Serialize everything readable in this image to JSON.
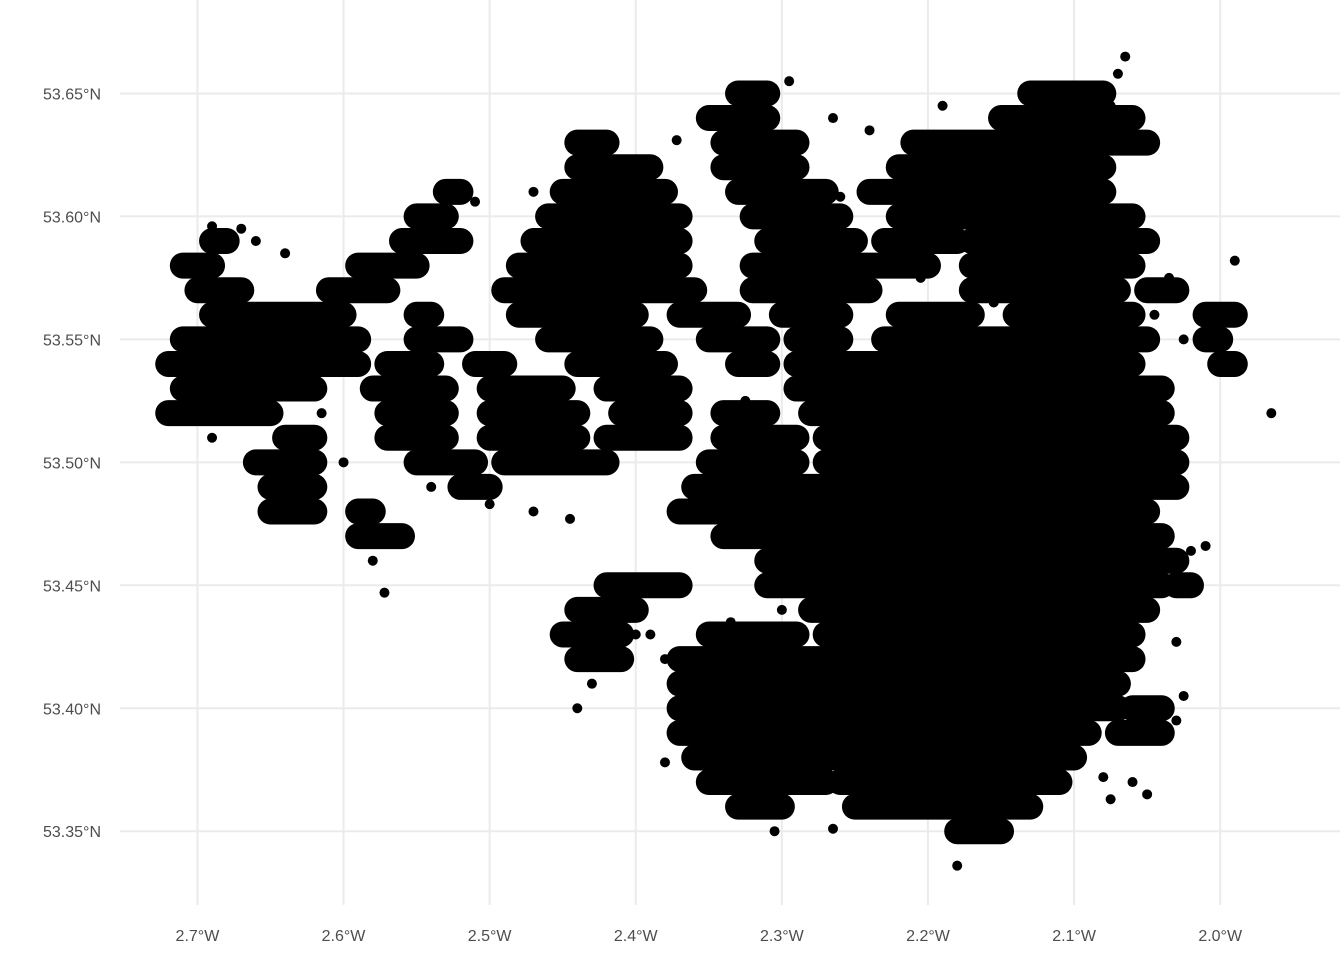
{
  "chart_data": {
    "type": "scatter",
    "title": "",
    "xlabel": "",
    "ylabel": "",
    "xlim": [
      -2.753,
      -1.918
    ],
    "ylim": [
      53.32,
      53.688
    ],
    "grid": true,
    "legend": "none",
    "point_color": "#000000",
    "grid_color": "#ebebeb",
    "x_ticks": [
      {
        "value": -2.7,
        "label": "2.7°W"
      },
      {
        "value": -2.6,
        "label": "2.6°W"
      },
      {
        "value": -2.5,
        "label": "2.5°W"
      },
      {
        "value": -2.4,
        "label": "2.4°W"
      },
      {
        "value": -2.3,
        "label": "2.3°W"
      },
      {
        "value": -2.2,
        "label": "2.2°W"
      },
      {
        "value": -2.1,
        "label": "2.1°W"
      },
      {
        "value": -2.0,
        "label": "2.0°W"
      }
    ],
    "y_ticks": [
      {
        "value": 53.65,
        "label": "53.65°N"
      },
      {
        "value": 53.6,
        "label": "53.60°N"
      },
      {
        "value": 53.55,
        "label": "53.55°N"
      },
      {
        "value": 53.5,
        "label": "53.50°N"
      },
      {
        "value": 53.45,
        "label": "53.45°N"
      },
      {
        "value": 53.4,
        "label": "53.40°N"
      },
      {
        "value": 53.35,
        "label": "53.35°N"
      }
    ],
    "dense_point_runs": [
      {
        "lat": 53.65,
        "lon": [
          [
            -2.33,
            -2.31
          ],
          [
            -2.13,
            -2.08
          ]
        ]
      },
      {
        "lat": 53.64,
        "lon": [
          [
            -2.35,
            -2.31
          ],
          [
            -2.15,
            -2.06
          ]
        ]
      },
      {
        "lat": 53.63,
        "lon": [
          [
            -2.44,
            -2.42
          ],
          [
            -2.34,
            -2.29
          ],
          [
            -2.21,
            -2.05
          ]
        ]
      },
      {
        "lat": 53.62,
        "lon": [
          [
            -2.44,
            -2.39
          ],
          [
            -2.34,
            -2.29
          ],
          [
            -2.22,
            -2.08
          ]
        ]
      },
      {
        "lat": 53.61,
        "lon": [
          [
            -2.53,
            -2.52
          ],
          [
            -2.45,
            -2.38
          ],
          [
            -2.33,
            -2.27
          ],
          [
            -2.24,
            -2.08
          ]
        ]
      },
      {
        "lat": 53.6,
        "lon": [
          [
            -2.55,
            -2.53
          ],
          [
            -2.46,
            -2.37
          ],
          [
            -2.32,
            -2.26
          ],
          [
            -2.22,
            -2.06
          ]
        ]
      },
      {
        "lat": 53.59,
        "lon": [
          [
            -2.69,
            -2.68
          ],
          [
            -2.56,
            -2.52
          ],
          [
            -2.47,
            -2.37
          ],
          [
            -2.31,
            -2.25
          ],
          [
            -2.23,
            -2.18
          ],
          [
            -2.17,
            -2.05
          ]
        ]
      },
      {
        "lat": 53.58,
        "lon": [
          [
            -2.71,
            -2.69
          ],
          [
            -2.59,
            -2.55
          ],
          [
            -2.48,
            -2.37
          ],
          [
            -2.32,
            -2.2
          ],
          [
            -2.17,
            -2.06
          ]
        ]
      },
      {
        "lat": 53.57,
        "lon": [
          [
            -2.7,
            -2.67
          ],
          [
            -2.61,
            -2.57
          ],
          [
            -2.49,
            -2.36
          ],
          [
            -2.32,
            -2.24
          ],
          [
            -2.17,
            -2.07
          ],
          [
            -2.05,
            -2.03
          ]
        ]
      },
      {
        "lat": 53.56,
        "lon": [
          [
            -2.69,
            -2.6
          ],
          [
            -2.55,
            -2.54
          ],
          [
            -2.48,
            -2.4
          ],
          [
            -2.37,
            -2.33
          ],
          [
            -2.3,
            -2.26
          ],
          [
            -2.22,
            -2.17
          ],
          [
            -2.14,
            -2.06
          ],
          [
            -2.01,
            -1.99
          ]
        ]
      },
      {
        "lat": 53.55,
        "lon": [
          [
            -2.71,
            -2.59
          ],
          [
            -2.55,
            -2.52
          ],
          [
            -2.46,
            -2.39
          ],
          [
            -2.35,
            -2.31
          ],
          [
            -2.29,
            -2.26
          ],
          [
            -2.23,
            -2.05
          ],
          [
            -2.01,
            -2.0
          ]
        ]
      },
      {
        "lat": 53.54,
        "lon": [
          [
            -2.72,
            -2.59
          ],
          [
            -2.57,
            -2.54
          ],
          [
            -2.51,
            -2.49
          ],
          [
            -2.44,
            -2.38
          ],
          [
            -2.33,
            -2.31
          ],
          [
            -2.29,
            -2.06
          ],
          [
            -2.0,
            -1.99
          ]
        ]
      },
      {
        "lat": 53.53,
        "lon": [
          [
            -2.71,
            -2.62
          ],
          [
            -2.58,
            -2.53
          ],
          [
            -2.5,
            -2.45
          ],
          [
            -2.42,
            -2.37
          ],
          [
            -2.29,
            -2.04
          ]
        ]
      },
      {
        "lat": 53.52,
        "lon": [
          [
            -2.72,
            -2.65
          ],
          [
            -2.57,
            -2.53
          ],
          [
            -2.5,
            -2.44
          ],
          [
            -2.41,
            -2.37
          ],
          [
            -2.34,
            -2.31
          ],
          [
            -2.28,
            -2.04
          ]
        ]
      },
      {
        "lat": 53.51,
        "lon": [
          [
            -2.64,
            -2.62
          ],
          [
            -2.57,
            -2.53
          ],
          [
            -2.5,
            -2.44
          ],
          [
            -2.42,
            -2.37
          ],
          [
            -2.34,
            -2.29
          ],
          [
            -2.27,
            -2.03
          ]
        ]
      },
      {
        "lat": 53.5,
        "lon": [
          [
            -2.66,
            -2.62
          ],
          [
            -2.55,
            -2.51
          ],
          [
            -2.49,
            -2.42
          ],
          [
            -2.35,
            -2.29
          ],
          [
            -2.27,
            -2.03
          ]
        ]
      },
      {
        "lat": 53.49,
        "lon": [
          [
            -2.65,
            -2.62
          ],
          [
            -2.52,
            -2.5
          ],
          [
            -2.36,
            -2.03
          ]
        ]
      },
      {
        "lat": 53.48,
        "lon": [
          [
            -2.65,
            -2.62
          ],
          [
            -2.59,
            -2.58
          ],
          [
            -2.37,
            -2.05
          ]
        ]
      },
      {
        "lat": 53.47,
        "lon": [
          [
            -2.59,
            -2.56
          ],
          [
            -2.34,
            -2.04
          ]
        ]
      },
      {
        "lat": 53.46,
        "lon": [
          [
            -2.31,
            -2.03
          ]
        ]
      },
      {
        "lat": 53.45,
        "lon": [
          [
            -2.42,
            -2.37
          ],
          [
            -2.31,
            -2.04
          ],
          [
            -2.03,
            -2.02
          ]
        ]
      },
      {
        "lat": 53.44,
        "lon": [
          [
            -2.44,
            -2.4
          ],
          [
            -2.28,
            -2.05
          ]
        ]
      },
      {
        "lat": 53.43,
        "lon": [
          [
            -2.45,
            -2.41
          ],
          [
            -2.35,
            -2.29
          ],
          [
            -2.27,
            -2.06
          ]
        ]
      },
      {
        "lat": 53.42,
        "lon": [
          [
            -2.44,
            -2.41
          ],
          [
            -2.37,
            -2.06
          ]
        ]
      },
      {
        "lat": 53.41,
        "lon": [
          [
            -2.37,
            -2.07
          ]
        ]
      },
      {
        "lat": 53.4,
        "lon": [
          [
            -2.37,
            -2.07
          ],
          [
            -2.06,
            -2.04
          ]
        ]
      },
      {
        "lat": 53.39,
        "lon": [
          [
            -2.37,
            -2.09
          ],
          [
            -2.07,
            -2.04
          ]
        ]
      },
      {
        "lat": 53.38,
        "lon": [
          [
            -2.36,
            -2.1
          ]
        ]
      },
      {
        "lat": 53.37,
        "lon": [
          [
            -2.35,
            -2.27
          ],
          [
            -2.26,
            -2.11
          ]
        ]
      },
      {
        "lat": 53.36,
        "lon": [
          [
            -2.33,
            -2.3
          ],
          [
            -2.25,
            -2.13
          ]
        ]
      },
      {
        "lat": 53.35,
        "lon": [
          [
            -2.18,
            -2.15
          ]
        ]
      }
    ],
    "points": [
      [
        -2.707,
        53.58
      ],
      [
        -2.7,
        53.541
      ],
      [
        -2.71,
        53.522
      ],
      [
        -2.69,
        53.51
      ],
      [
        -2.572,
        53.447
      ],
      [
        -2.58,
        53.46
      ],
      [
        -2.62,
        53.48
      ],
      [
        -2.445,
        53.477
      ],
      [
        -2.44,
        53.4
      ],
      [
        -2.43,
        53.41
      ],
      [
        -2.38,
        53.378
      ],
      [
        -2.37,
        53.39
      ],
      [
        -2.39,
        53.43
      ],
      [
        -2.4,
        53.43
      ],
      [
        -2.305,
        53.35
      ],
      [
        -2.265,
        53.351
      ],
      [
        -2.18,
        53.336
      ],
      [
        -2.155,
        53.347
      ],
      [
        -1.965,
        53.52
      ],
      [
        -1.99,
        53.582
      ],
      [
        -1.99,
        53.54
      ],
      [
        -2.02,
        53.464
      ],
      [
        -2.01,
        53.466
      ],
      [
        -2.03,
        53.427
      ],
      [
        -2.025,
        53.405
      ],
      [
        -2.03,
        53.395
      ],
      [
        -2.075,
        53.363
      ],
      [
        -2.08,
        53.372
      ],
      [
        -2.097,
        53.465
      ],
      [
        -2.075,
        53.645
      ],
      [
        -2.07,
        53.658
      ],
      [
        -2.065,
        53.665
      ],
      [
        -2.295,
        53.655
      ],
      [
        -2.3,
        53.63
      ],
      [
        -2.33,
        53.615
      ],
      [
        -2.372,
        53.631
      ],
      [
        -2.355,
        53.64
      ],
      [
        -2.265,
        53.64
      ],
      [
        -2.24,
        53.635
      ],
      [
        -2.19,
        53.645
      ],
      [
        -2.21,
        53.605
      ],
      [
        -2.26,
        53.608
      ],
      [
        -2.38,
        53.6
      ],
      [
        -2.47,
        53.61
      ],
      [
        -2.51,
        53.606
      ],
      [
        -2.52,
        53.59
      ],
      [
        -2.575,
        53.57
      ],
      [
        -2.64,
        53.585
      ],
      [
        -2.66,
        53.59
      ],
      [
        -2.67,
        53.595
      ],
      [
        -2.69,
        53.596
      ],
      [
        -2.615,
        53.52
      ],
      [
        -2.44,
        53.502
      ],
      [
        -2.47,
        53.48
      ],
      [
        -2.5,
        53.483
      ],
      [
        -2.54,
        53.49
      ],
      [
        -2.6,
        53.5
      ],
      [
        -2.405,
        53.515
      ],
      [
        -2.325,
        53.525
      ],
      [
        -2.205,
        53.575
      ],
      [
        -2.155,
        53.565
      ],
      [
        -2.035,
        53.575
      ],
      [
        -2.07,
        53.6
      ],
      [
        -2.09,
        53.605
      ],
      [
        -2.045,
        53.56
      ],
      [
        -2.025,
        53.55
      ],
      [
        -2.3,
        53.44
      ],
      [
        -2.335,
        53.435
      ],
      [
        -2.38,
        53.42
      ],
      [
        -2.05,
        53.365
      ],
      [
        -2.06,
        53.37
      ]
    ]
  }
}
